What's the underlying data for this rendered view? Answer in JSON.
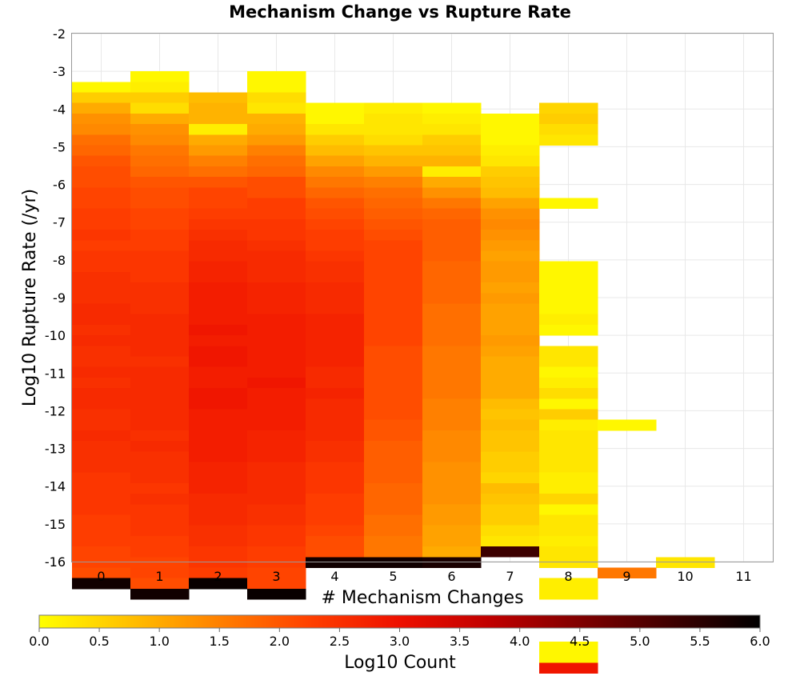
{
  "chart_data": {
    "type": "heatmap",
    "title": "Mechanism Change vs Rupture Rate",
    "xlabel": "# Mechanism Changes",
    "ylabel": "Log10 Rupture Rate (/yr)",
    "x_ticks": [
      "0",
      "1",
      "2",
      "3",
      "4",
      "5",
      "6",
      "7",
      "8",
      "9",
      "10",
      "11"
    ],
    "y_ticks": [
      "-2",
      "-3",
      "-4",
      "-5",
      "-6",
      "-7",
      "-8",
      "-9",
      "-10",
      "-11",
      "-12",
      "-13",
      "-14",
      "-15",
      "-16"
    ],
    "xlim": [
      -0.5,
      11.5
    ],
    "ylim": [
      -16,
      -2
    ],
    "bin_height": 0.28,
    "colorbar": {
      "label": "Log10 Count",
      "range": [
        0,
        6
      ],
      "ticks": [
        "0.0",
        "0.5",
        "1.0",
        "1.5",
        "2.0",
        "2.5",
        "3.0",
        "3.5",
        "4.0",
        "4.5",
        "5.0",
        "5.5",
        "6.0"
      ],
      "colors": [
        "#ffff00",
        "#ffc000",
        "#ff8000",
        "#ff4000",
        "#ee1000",
        "#c00000",
        "#800000",
        "#400000",
        "#000000"
      ]
    },
    "grid": true,
    "legend": "bottom",
    "columns": [
      {
        "x": 0,
        "top": -3.28,
        "values": [
          0.1,
          0.6,
          1.0,
          1.3,
          1.4,
          1.7,
          1.8,
          2.0,
          2.1,
          2.1,
          2.2,
          2.2,
          2.3,
          2.3,
          2.4,
          2.3,
          2.4,
          2.4,
          2.5,
          2.5,
          2.5,
          2.6,
          2.6,
          2.5,
          2.6,
          2.5,
          2.5,
          2.6,
          2.5,
          2.6,
          2.6,
          2.5,
          2.5,
          2.6,
          2.5,
          2.5,
          2.5,
          2.4,
          2.4,
          2.4,
          2.4,
          2.3,
          2.3,
          2.3,
          2.2,
          2.2,
          2.1,
          5.8
        ]
      },
      {
        "x": 1,
        "top": -3.0,
        "values": [
          0.1,
          0.2,
          0.6,
          0.4,
          1.0,
          1.3,
          1.4,
          1.6,
          1.7,
          1.8,
          2.0,
          2.1,
          2.1,
          2.2,
          2.2,
          2.3,
          2.3,
          2.4,
          2.4,
          2.4,
          2.5,
          2.5,
          2.5,
          2.6,
          2.6,
          2.6,
          2.6,
          2.5,
          2.6,
          2.6,
          2.6,
          2.6,
          2.6,
          2.6,
          2.5,
          2.6,
          2.5,
          2.5,
          2.5,
          2.4,
          2.5,
          2.4,
          2.4,
          2.4,
          2.3,
          2.3,
          2.2,
          2.2,
          2.1,
          5.8
        ]
      },
      {
        "x": 2,
        "top": -3.56,
        "values": [
          0.8,
          0.9,
          0.9,
          0.2,
          1.0,
          1.2,
          1.5,
          1.7,
          2.0,
          2.2,
          2.2,
          2.3,
          2.4,
          2.5,
          2.6,
          2.6,
          2.7,
          2.7,
          2.8,
          2.8,
          2.8,
          2.8,
          2.9,
          2.8,
          2.9,
          2.9,
          2.8,
          2.8,
          2.9,
          2.9,
          2.8,
          2.8,
          2.8,
          2.8,
          2.8,
          2.7,
          2.7,
          2.7,
          2.6,
          2.6,
          2.6,
          2.5,
          2.5,
          2.4,
          2.4,
          2.3,
          5.9
        ]
      },
      {
        "x": 3,
        "top": -3.0,
        "values": [
          0.1,
          0.1,
          0.4,
          0.3,
          0.9,
          1.0,
          1.2,
          1.5,
          1.7,
          1.8,
          2.1,
          2.1,
          2.3,
          2.3,
          2.4,
          2.4,
          2.5,
          2.6,
          2.6,
          2.6,
          2.7,
          2.7,
          2.7,
          2.8,
          2.8,
          2.8,
          2.8,
          2.8,
          2.8,
          2.9,
          2.8,
          2.8,
          2.8,
          2.8,
          2.7,
          2.7,
          2.7,
          2.6,
          2.6,
          2.6,
          2.6,
          2.5,
          2.5,
          2.4,
          2.4,
          2.3,
          2.3,
          2.2,
          2.2,
          5.9
        ]
      },
      {
        "x": 4,
        "top": -3.84,
        "values": [
          0.1,
          0.1,
          0.3,
          0.6,
          0.8,
          1.1,
          1.4,
          1.6,
          1.8,
          2.0,
          2.1,
          2.2,
          2.3,
          2.3,
          2.4,
          2.5,
          2.5,
          2.6,
          2.6,
          2.6,
          2.7,
          2.7,
          2.7,
          2.7,
          2.7,
          2.6,
          2.6,
          2.7,
          2.6,
          2.6,
          2.6,
          2.6,
          2.5,
          2.5,
          2.4,
          2.4,
          2.4,
          2.3,
          2.3,
          2.3,
          2.2,
          2.1,
          2.1,
          5.8
        ]
      },
      {
        "x": 5,
        "top": -3.84,
        "values": [
          0.2,
          0.3,
          0.3,
          0.4,
          0.7,
          0.9,
          1.2,
          1.5,
          1.7,
          1.8,
          1.9,
          2.0,
          2.1,
          2.2,
          2.2,
          2.2,
          2.2,
          2.2,
          2.2,
          2.2,
          2.2,
          2.2,
          2.2,
          2.1,
          2.1,
          2.1,
          2.1,
          2.1,
          2.1,
          2.1,
          2.0,
          2.0,
          1.9,
          1.9,
          1.9,
          1.9,
          1.8,
          1.8,
          1.8,
          1.7,
          1.7,
          1.6,
          1.6,
          5.8
        ]
      },
      {
        "x": 6,
        "top": -3.84,
        "values": [
          0.1,
          0.2,
          0.3,
          0.6,
          0.7,
          0.9,
          0.2,
          1.0,
          1.3,
          1.6,
          1.8,
          1.9,
          1.9,
          1.9,
          1.9,
          1.8,
          1.8,
          1.8,
          1.8,
          1.7,
          1.7,
          1.7,
          1.7,
          1.6,
          1.6,
          1.6,
          1.6,
          1.6,
          1.5,
          1.5,
          1.5,
          1.4,
          1.4,
          1.4,
          1.3,
          1.3,
          1.3,
          1.3,
          1.2,
          1.2,
          1.1,
          1.1,
          1.0,
          5.7
        ]
      },
      {
        "x": 7,
        "top": -4.12,
        "values": [
          0.1,
          0.1,
          0.1,
          0.2,
          0.3,
          0.6,
          0.7,
          0.8,
          1.1,
          1.3,
          1.4,
          1.3,
          1.2,
          1.1,
          1.2,
          1.2,
          1.1,
          1.2,
          1.1,
          1.1,
          1.1,
          1.2,
          1.1,
          1.0,
          1.0,
          1.0,
          1.0,
          0.8,
          0.7,
          0.8,
          0.7,
          0.7,
          0.6,
          0.6,
          0.5,
          0.8,
          0.7,
          0.6,
          0.6,
          0.4,
          0.3,
          5.3
        ]
      },
      {
        "x": 8,
        "top": -3.84,
        "values": [
          0.5,
          0.6,
          0.4,
          0.3,
          null,
          null,
          null,
          null,
          null,
          0.1,
          null,
          null,
          null,
          null,
          null,
          0.1,
          0.1,
          0.1,
          0.1,
          0.1,
          0.2,
          0.1,
          null,
          0.3,
          0.3,
          0.1,
          0.2,
          0.4,
          0.1,
          0.6,
          0.2,
          0.3,
          0.3,
          0.3,
          0.3,
          0.2,
          0.2,
          0.5,
          0.1,
          0.3,
          0.3,
          0.2,
          0.3,
          0.3,
          null,
          0.2,
          0.2,
          null,
          null,
          null,
          null,
          0.1,
          0.1,
          2.9
        ]
      },
      {
        "x": 9,
        "top": -12.24,
        "values": [
          0.1,
          null,
          null,
          null,
          null,
          null,
          null,
          null,
          null,
          null,
          null,
          null,
          null,
          null,
          1.6
        ]
      },
      {
        "x": 10,
        "top": -15.88,
        "values": [
          0.3
        ]
      }
    ]
  }
}
